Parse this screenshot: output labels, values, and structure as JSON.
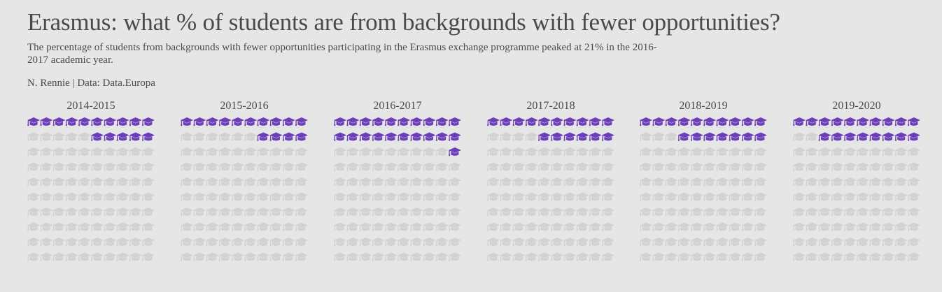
{
  "title": "Erasmus: what % of students are from backgrounds with fewer opportunities?",
  "subtitle": "The percentage of students from backgrounds with fewer opportunities participating in the Erasmus exchange programme peaked at 21% in the 2016-2017 academic year.",
  "caption": "N. Rennie | Data: Data.Europa",
  "colors": {
    "highlight": "#6a3fb8",
    "muted": "#d2d2d2",
    "background": "#e6e6e6",
    "text": "#4a4a4a"
  },
  "icon": "graduation-cap-icon",
  "chart_data": {
    "type": "waffle",
    "grid": {
      "rows": 10,
      "cols": 10,
      "units": "percent of students"
    },
    "categories": [
      "2014-2015",
      "2015-2016",
      "2016-2017",
      "2017-2018",
      "2018-2019",
      "2019-2020"
    ],
    "values": [
      15,
      14,
      21,
      16,
      17,
      18
    ]
  }
}
